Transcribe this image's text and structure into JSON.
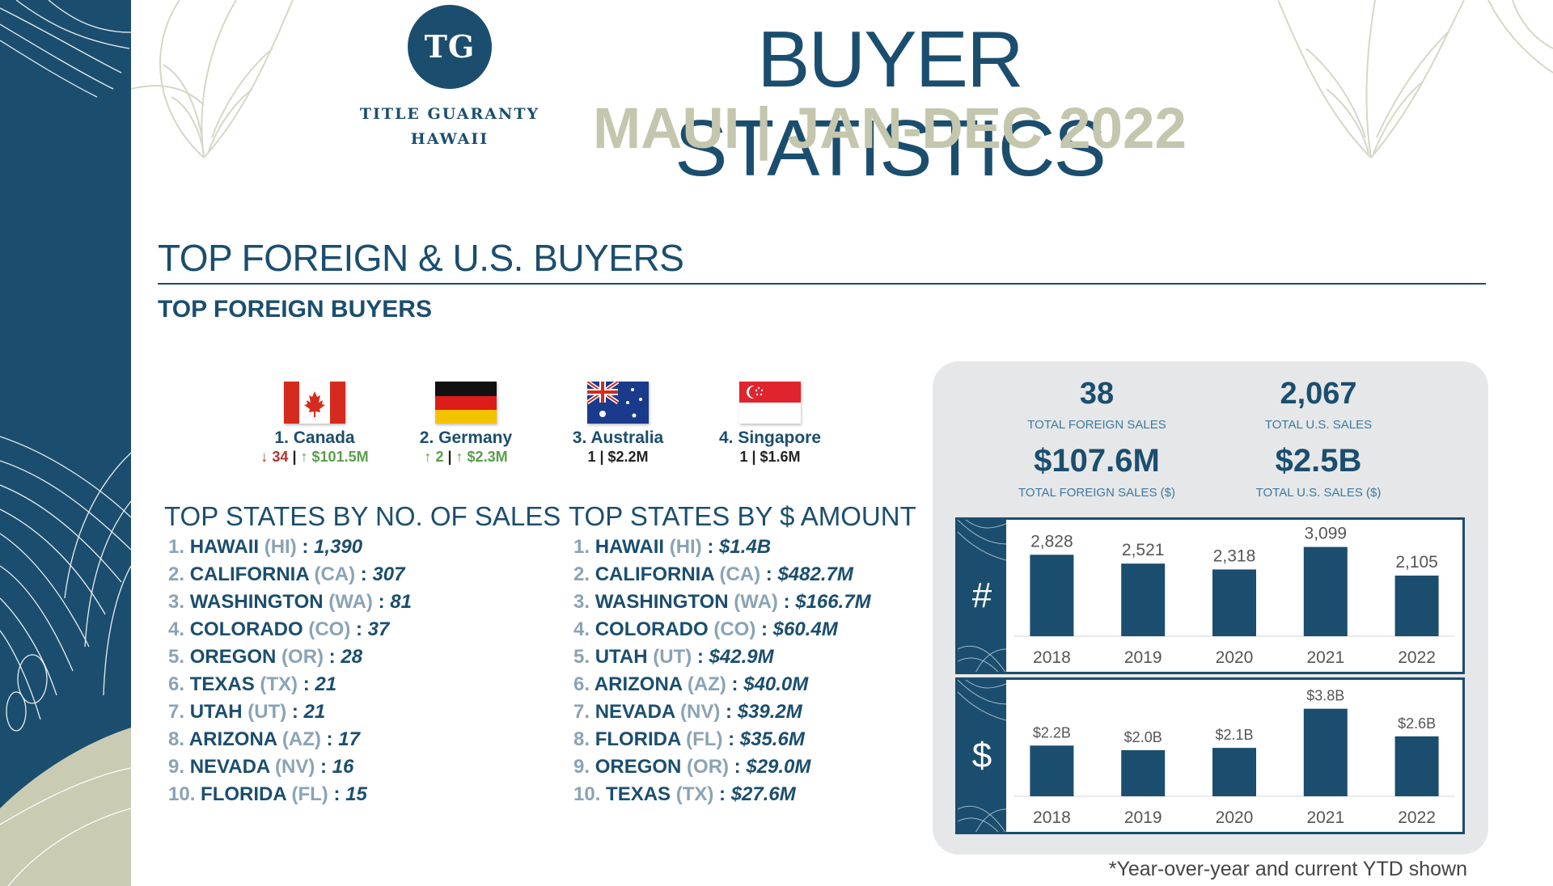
{
  "header": {
    "logo_initials": "TG",
    "logo_line1": "TITLE GUARANTY",
    "logo_line2": "HAWAII",
    "title": "BUYER STATISTICS",
    "subtitle": "MAUI | JAN-DEC 2022"
  },
  "section": {
    "title": "TOP FOREIGN & U.S. BUYERS",
    "subtitle": "TOP FOREIGN BUYERS"
  },
  "foreign_buyers": [
    {
      "name": "1. Canada",
      "count": "34",
      "count_dir": "down",
      "amount": "$101.5M",
      "amount_dir": "up",
      "flag": "canada-flag-icon"
    },
    {
      "name": "2. Germany",
      "count": "2",
      "count_dir": "up",
      "amount": "$2.3M",
      "amount_dir": "up",
      "flag": "germany-flag-icon"
    },
    {
      "name": "3. Australia",
      "stats": "1 | $2.2M",
      "flag": "australia-flag-icon"
    },
    {
      "name": "4. Singapore",
      "stats": "1 | $1.6M",
      "flag": "singapore-flag-icon"
    }
  ],
  "sep": "|",
  "arrows": {
    "down": "↓",
    "up": "↑"
  },
  "by_sales": {
    "title": "TOP STATES BY NO. OF SALES",
    "items": [
      {
        "rank": "1.",
        "state": "HAWAII",
        "abbr": "(HI)",
        "value": "1,390"
      },
      {
        "rank": "2.",
        "state": "CALIFORNIA",
        "abbr": "(CA)",
        "value": "307"
      },
      {
        "rank": "3.",
        "state": "WASHINGTON",
        "abbr": "(WA)",
        "value": "81"
      },
      {
        "rank": "4.",
        "state": "COLORADO",
        "abbr": "(CO)",
        "value": "37"
      },
      {
        "rank": "5.",
        "state": "OREGON",
        "abbr": "(OR)",
        "value": "28"
      },
      {
        "rank": "6.",
        "state": "TEXAS",
        "abbr": "(TX)",
        "value": "21"
      },
      {
        "rank": "7.",
        "state": "UTAH",
        "abbr": "(UT)",
        "value": "21"
      },
      {
        "rank": "8.",
        "state": "ARIZONA",
        "abbr": "(AZ)",
        "value": "17"
      },
      {
        "rank": "9.",
        "state": "NEVADA",
        "abbr": "(NV)",
        "value": "16"
      },
      {
        "rank": "10.",
        "state": "FLORIDA",
        "abbr": "(FL)",
        "value": "15"
      }
    ]
  },
  "by_amount": {
    "title": "TOP STATES BY $ AMOUNT",
    "items": [
      {
        "rank": "1.",
        "state": "HAWAII",
        "abbr": "(HI)",
        "value": "$1.4B"
      },
      {
        "rank": "2.",
        "state": "CALIFORNIA",
        "abbr": "(CA)",
        "value": "$482.7M"
      },
      {
        "rank": "3.",
        "state": "WASHINGTON",
        "abbr": "(WA)",
        "value": "$166.7M"
      },
      {
        "rank": "4.",
        "state": "COLORADO",
        "abbr": "(CO)",
        "value": "$60.4M"
      },
      {
        "rank": "5.",
        "state": "UTAH",
        "abbr": "(UT)",
        "value": "$42.9M"
      },
      {
        "rank": "6.",
        "state": "ARIZONA",
        "abbr": "(AZ)",
        "value": "$40.0M"
      },
      {
        "rank": "7.",
        "state": "NEVADA",
        "abbr": "(NV)",
        "value": "$39.2M"
      },
      {
        "rank": "8.",
        "state": "FLORIDA",
        "abbr": "(FL)",
        "value": "$35.6M"
      },
      {
        "rank": "9.",
        "state": "OREGON",
        "abbr": "(OR)",
        "value": "$29.0M"
      },
      {
        "rank": "10.",
        "state": "TEXAS",
        "abbr": "(TX)",
        "value": "$27.6M"
      }
    ]
  },
  "kpis": {
    "foreign_sales": "38",
    "foreign_sales_label": "TOTAL FOREIGN SALES",
    "us_sales": "2,067",
    "us_sales_label": "TOTAL U.S. SALES",
    "foreign_amount": "$107.6M",
    "foreign_amount_label": "TOTAL FOREIGN SALES ($)",
    "us_amount": "$2.5B",
    "us_amount_label": "TOTAL U.S. SALES ($)"
  },
  "chart_symbols": {
    "count": "#",
    "dollar": "$"
  },
  "colors": {
    "navy": "#1b4e6e",
    "sage": "#c4c6ad",
    "panel": "#e6e7e8",
    "down": "#b5312d",
    "up": "#5a9e4b"
  },
  "chart_data": [
    {
      "type": "bar",
      "categories": [
        "2018",
        "2019",
        "2020",
        "2021",
        "2022"
      ],
      "values": [
        2828,
        2521,
        2318,
        3099,
        2105
      ],
      "labels": [
        "2,828",
        "2,521",
        "2,318",
        "3,099",
        "2,105"
      ],
      "ylim": [
        0,
        3200
      ]
    },
    {
      "type": "bar",
      "categories": [
        "2018",
        "2019",
        "2020",
        "2021",
        "2022"
      ],
      "values": [
        2.2,
        2.0,
        2.1,
        3.8,
        2.6
      ],
      "labels": [
        "$2.2B",
        "$2.0B",
        "$2.1B",
        "$3.8B",
        "$2.6B"
      ],
      "ylim": [
        0,
        4.0
      ]
    }
  ],
  "footnote": "*Year-over-year and current YTD shown"
}
